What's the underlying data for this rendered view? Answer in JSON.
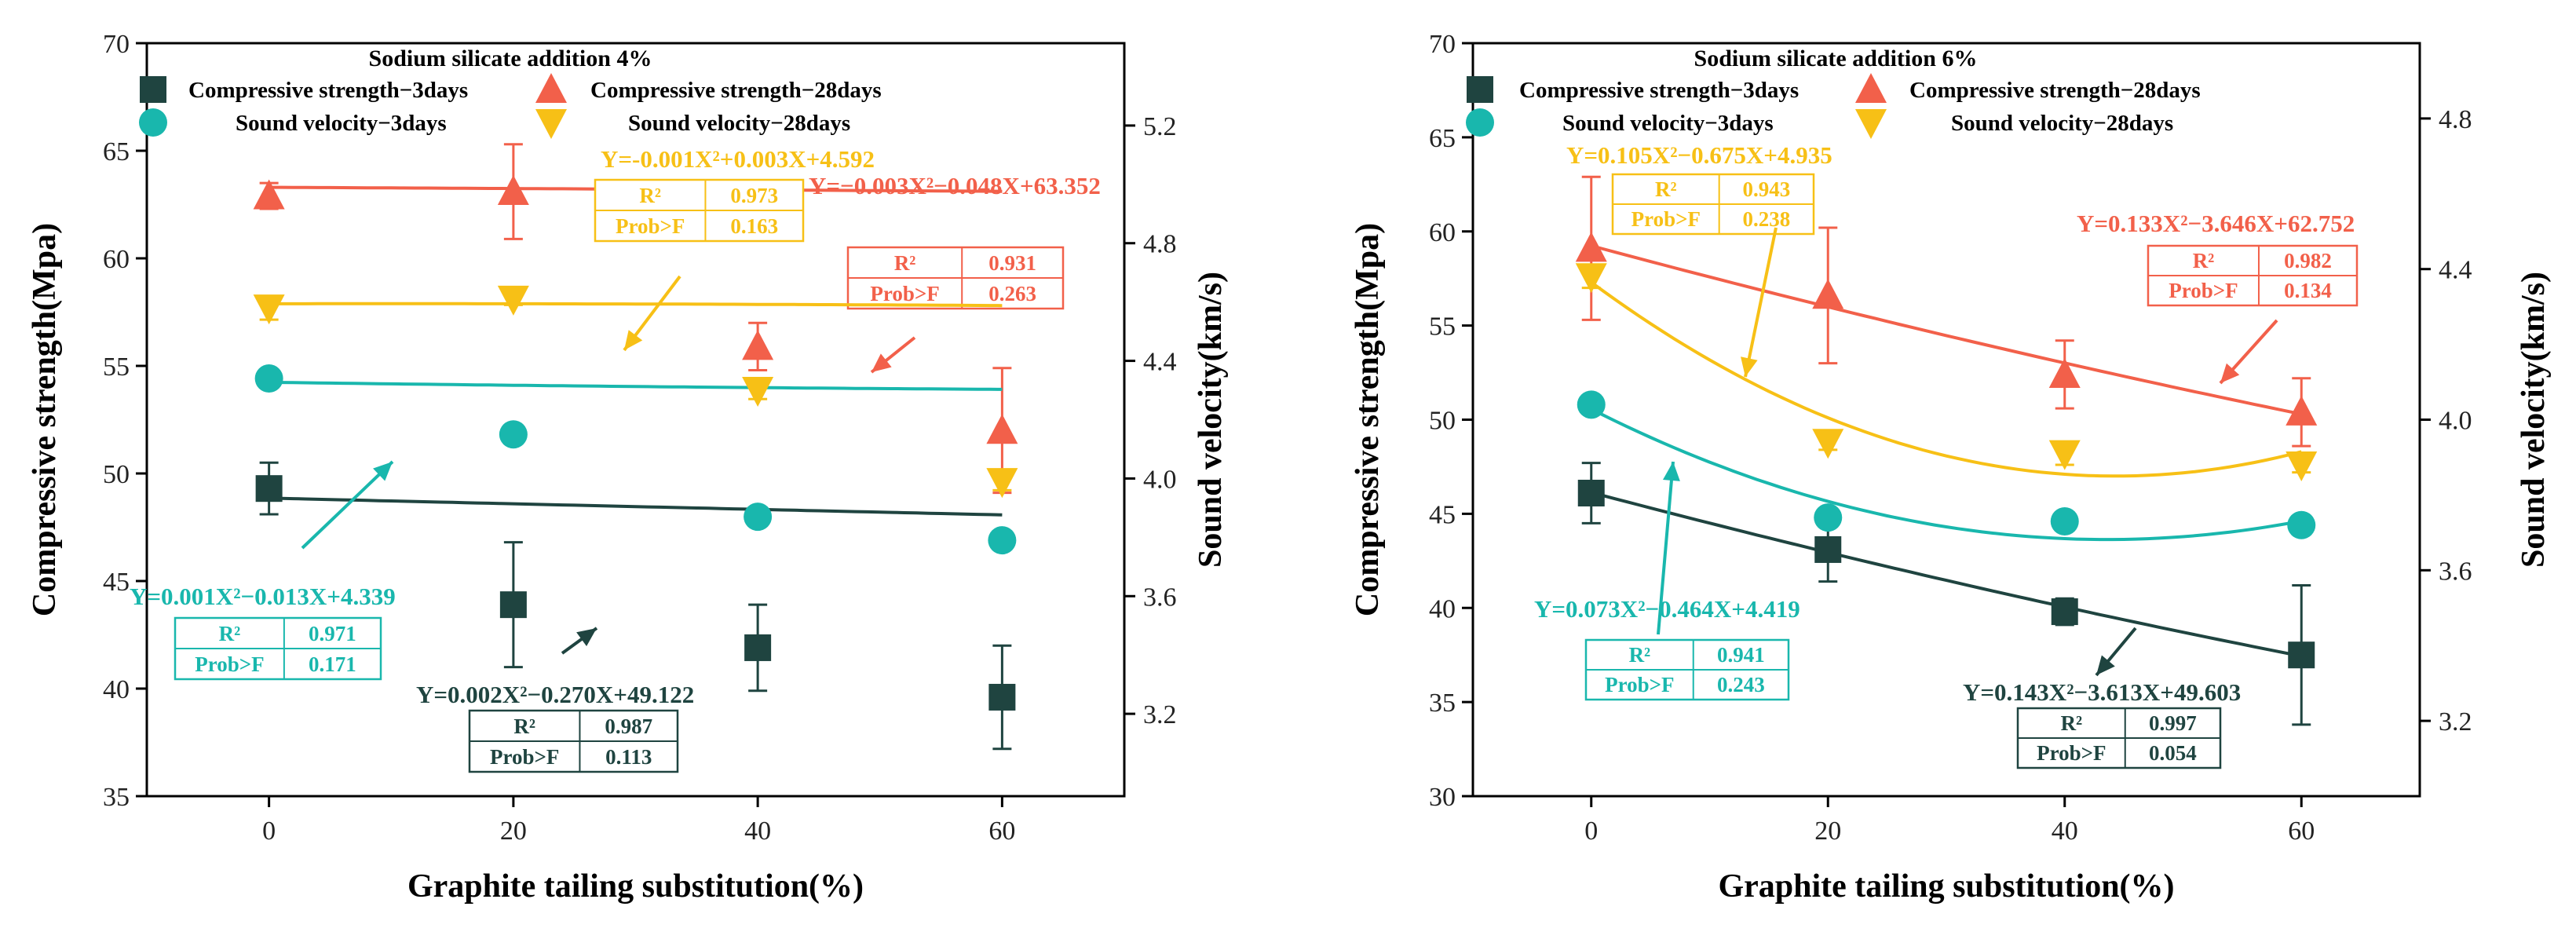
{
  "chart_data": [
    {
      "type": "scatter",
      "title": "Sodium silicate addition 4%",
      "xlabel": "Graphite tailing substitution(%)",
      "ylabel": "Compressive strength(Mpa)",
      "y2label": "Sound velocity(km/s)",
      "xlim": [
        -10,
        70
      ],
      "ylim": [
        35,
        70
      ],
      "y2lim": [
        2.92,
        5.48
      ],
      "xticks": [
        "0",
        "20",
        "40",
        "60"
      ],
      "yticks": [
        "35",
        "40",
        "45",
        "50",
        "55",
        "60",
        "65",
        "70"
      ],
      "y2ticks": [
        "3.2",
        "3.6",
        "4.0",
        "4.4",
        "4.8",
        "5.2"
      ],
      "x": [
        0,
        20,
        40,
        60
      ],
      "series": [
        {
          "name": "Compressive strength−3days",
          "axis": "left",
          "color": "#1f4440",
          "marker": "square",
          "values": [
            49.3,
            43.9,
            41.9,
            39.6
          ],
          "err_low": [
            1.2,
            2.9,
            2.0,
            2.4
          ],
          "err_high": [
            1.2,
            2.9,
            2.0,
            2.4
          ],
          "fit": [
            0.002,
            -0.27,
            49.122
          ],
          "equation": "Y=0.002X²−0.270X+49.122",
          "r2_label": "R²",
          "r2": "0.987",
          "prob_label": "Prob>F",
          "prob": "0.113"
        },
        {
          "name": "Compressive strength−28days",
          "axis": "left",
          "color": "#f2604a",
          "marker": "triangle-up",
          "values": [
            62.9,
            63.1,
            55.9,
            52.0
          ],
          "err_low": [
            0.6,
            2.2,
            1.1,
            2.9
          ],
          "err_high": [
            0.6,
            2.2,
            1.1,
            2.9
          ],
          "fit": [
            -0.003,
            -0.048,
            63.352
          ],
          "equation": "Y=−0.003X²−0.048X+63.352",
          "r2_label": "R²",
          "r2": "0.931",
          "prob_label": "Prob>F",
          "prob": "0.263"
        },
        {
          "name": "Sound velocity−3days",
          "axis": "right",
          "color": "#19b7ad",
          "marker": "circle",
          "values": [
            4.34,
            4.15,
            3.87,
            3.79
          ],
          "err_low": [
            0.0,
            0.025,
            0.03,
            0.03
          ],
          "err_high": [
            0.0,
            0.025,
            0.03,
            0.03
          ],
          "fit": [
            0.001,
            -0.013,
            4.339
          ],
          "equation": "Y=0.001X²−0.013X+4.339",
          "r2_label": "R²",
          "r2": "0.971",
          "prob_label": "Prob>F",
          "prob": "0.171"
        },
        {
          "name": "Sound velocity−28days",
          "axis": "right",
          "color": "#f7c016",
          "marker": "triangle-down",
          "values": [
            4.58,
            4.61,
            4.3,
            3.99
          ],
          "err_low": [
            0.04,
            0.02,
            0.03,
            0.03
          ],
          "err_high": [
            0.04,
            0.02,
            0.03,
            0.03
          ],
          "fit": [
            -0.001,
            0.003,
            4.592
          ],
          "equation": "Y=-0.001X²+0.003X+4.592",
          "r2_label": "R²",
          "r2": "0.973",
          "prob_label": "Prob>F",
          "prob": "0.163"
        }
      ]
    },
    {
      "type": "scatter",
      "title": "Sodium silicate addition 6%",
      "xlabel": "Graphite tailing substitution(%)",
      "ylabel": "Compressive strength(Mpa)",
      "y2label": "Sound velocity(km/s)",
      "xlim": [
        -10,
        70
      ],
      "ylim": [
        30,
        70
      ],
      "y2lim": [
        3.0,
        5.0
      ],
      "xticks": [
        "0",
        "20",
        "40",
        "60"
      ],
      "yticks": [
        "30",
        "35",
        "40",
        "45",
        "50",
        "55",
        "60",
        "65",
        "70"
      ],
      "y2ticks": [
        "3.2",
        "3.6",
        "4.0",
        "4.4",
        "4.8"
      ],
      "x": [
        0,
        20,
        40,
        60
      ],
      "series": [
        {
          "name": "Compressive strength−3days",
          "axis": "left",
          "color": "#1f4440",
          "marker": "square",
          "values": [
            46.1,
            43.1,
            39.8,
            37.5
          ],
          "err_low": [
            1.6,
            1.7,
            0.7,
            3.7
          ],
          "err_high": [
            1.6,
            1.7,
            0.7,
            3.7
          ],
          "fit": [
            0.143,
            -3.613,
            49.603
          ],
          "equation": "Y=0.143X²−3.613X+49.603",
          "r2_label": "R²",
          "r2": "0.997",
          "prob_label": "Prob>F",
          "prob": "0.054"
        },
        {
          "name": "Compressive strength−28days",
          "axis": "left",
          "color": "#f2604a",
          "marker": "triangle-up",
          "values": [
            59.1,
            56.6,
            52.4,
            50.4
          ],
          "err_low": [
            3.8,
            3.6,
            1.8,
            1.8
          ],
          "err_high": [
            3.8,
            3.6,
            1.8,
            1.8
          ],
          "fit": [
            0.133,
            -3.646,
            62.752
          ],
          "equation": "Y=0.133X²−3.646X+62.752",
          "r2_label": "R²",
          "r2": "0.982",
          "prob_label": "Prob>F",
          "prob": "0.134"
        },
        {
          "name": "Sound velocity−3days",
          "axis": "right",
          "color": "#19b7ad",
          "marker": "circle",
          "values": [
            4.04,
            3.74,
            3.73,
            3.72
          ],
          "err_low": [
            0.0,
            0.0,
            0.02,
            0.0
          ],
          "err_high": [
            0.0,
            0.0,
            0.02,
            0.0
          ],
          "fit": [
            0.073,
            -0.464,
            4.419
          ],
          "equation": "Y=0.073X²−0.464X+4.419",
          "r2_label": "R²",
          "r2": "0.941",
          "prob_label": "Prob>F",
          "prob": "0.243"
        },
        {
          "name": "Sound velocity−28days",
          "axis": "right",
          "color": "#f7c016",
          "marker": "triangle-down",
          "values": [
            4.38,
            3.94,
            3.91,
            3.88
          ],
          "err_low": [
            0.03,
            0.02,
            0.03,
            0.02
          ],
          "err_high": [
            0.03,
            0.02,
            0.03,
            0.02
          ],
          "fit": [
            0.105,
            -0.675,
            4.935
          ],
          "equation": "Y=0.105X²−0.675X+4.935",
          "r2_label": "R²",
          "r2": "0.943",
          "prob_label": "Prob>F",
          "prob": "0.238"
        }
      ]
    }
  ]
}
